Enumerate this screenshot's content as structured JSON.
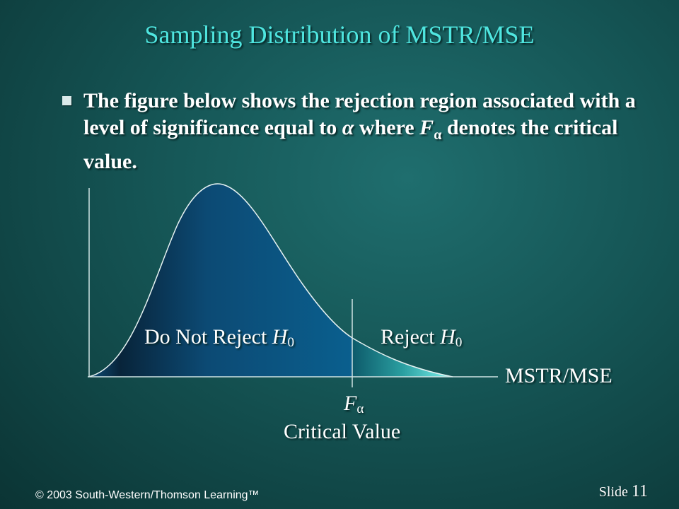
{
  "slide": {
    "title": "Sampling Distribution of MSTR/MSE",
    "bullet": {
      "part1": "The figure below shows the rejection region associated with a level of significance equal to ",
      "alpha1": "α",
      "part2": " where ",
      "f": "F",
      "alpha2": "α",
      "part3": " denotes the critical value."
    }
  },
  "figure": {
    "do_not_reject": "Do Not Reject ",
    "h": "H",
    "zero": "0",
    "reject": "Reject ",
    "axis_label": "MSTR/MSE",
    "critical_symbol": "F",
    "critical_sub": "α",
    "critical_caption": "Critical Value",
    "colors": {
      "accept_region": "#0a5b8a",
      "reject_region": "#42dcd6",
      "axis": "#cfe3e3"
    }
  },
  "footer": {
    "copyright": "© 2003  South-Western/Thomson Learning™",
    "slide_word": "Slide ",
    "slide_number": "11"
  }
}
